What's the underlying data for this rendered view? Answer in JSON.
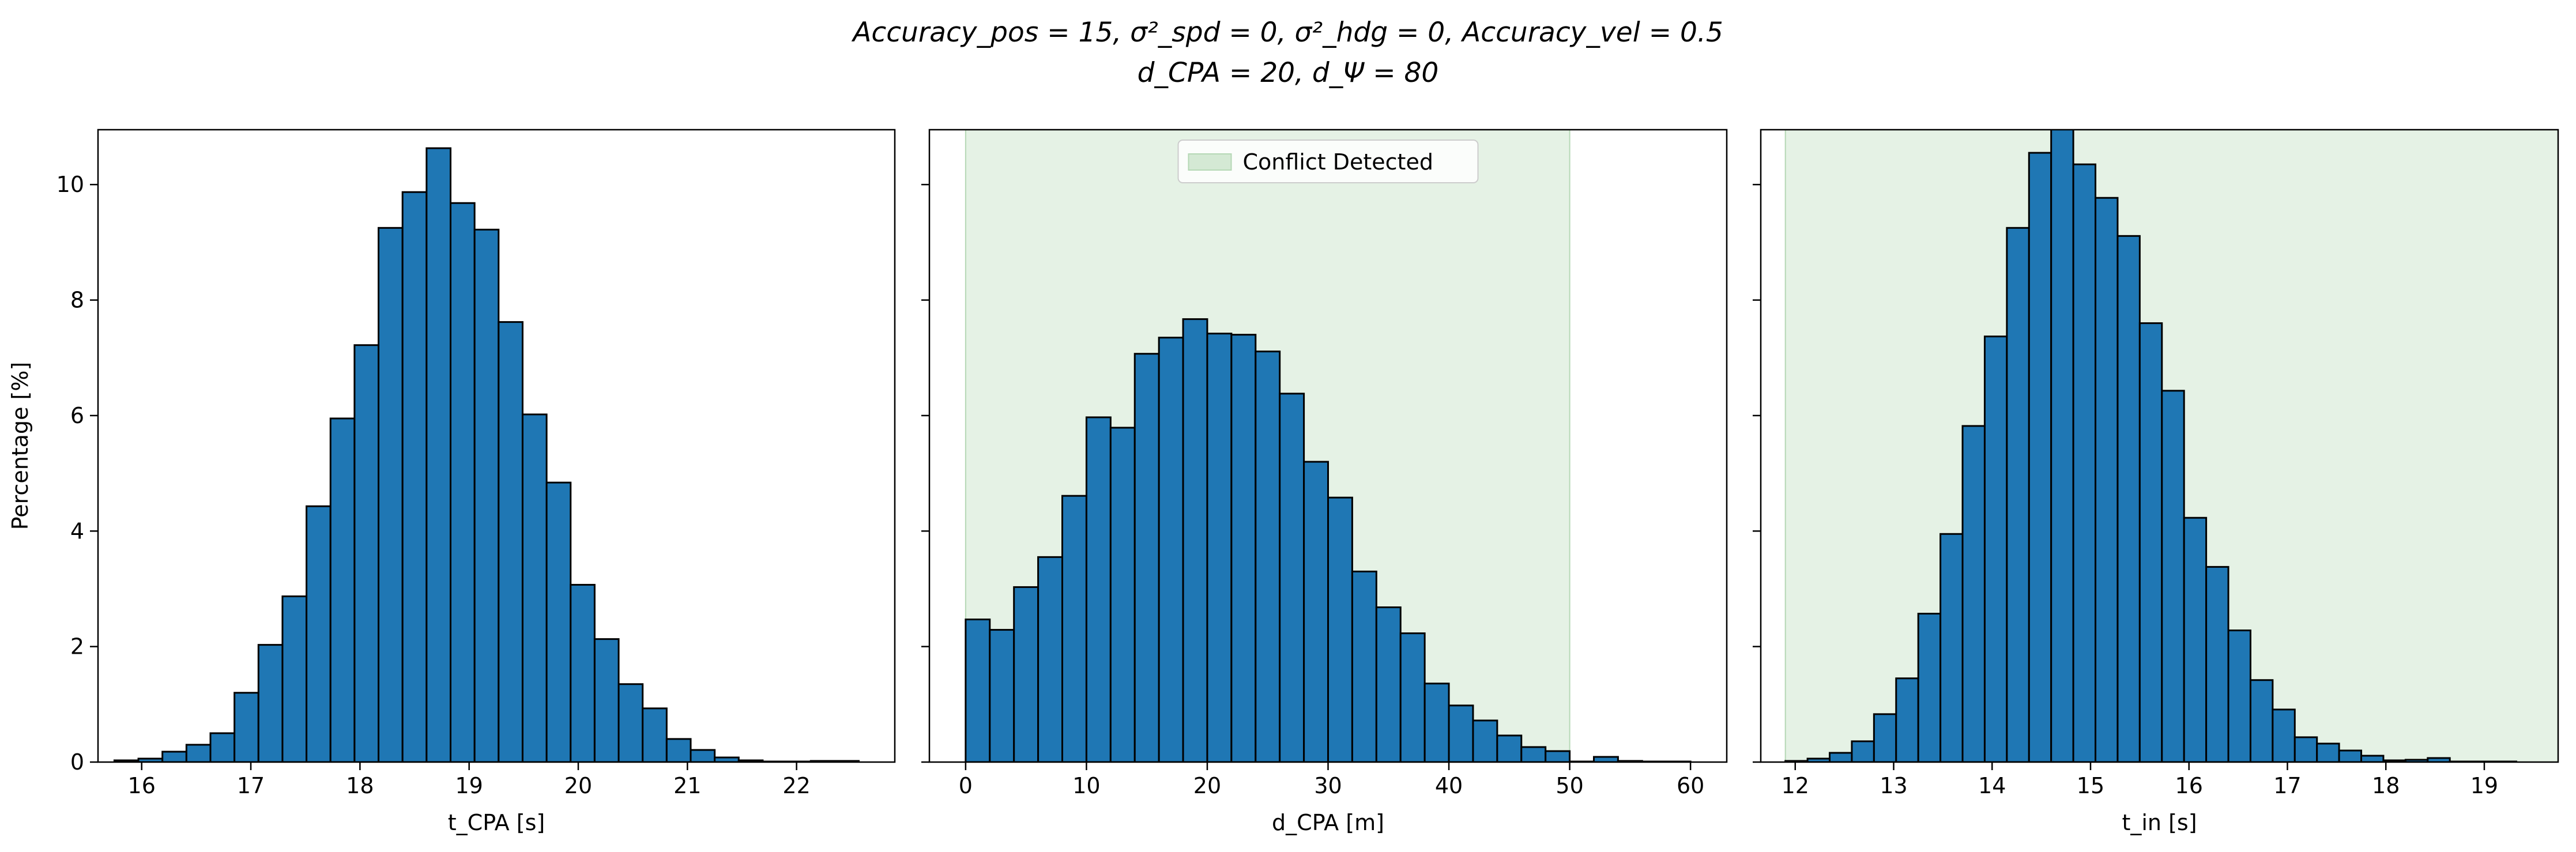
{
  "figure": {
    "title_line1": "Accuracy_pos = 15, σ²_spd = 0, σ²_hdg = 0, Accuracy_vel = 0.5",
    "title_line2": "d_CPA = 20, d_Ψ = 80"
  },
  "chart_data": [
    {
      "type": "bar",
      "title": "",
      "xlabel": "t_CPA [s]",
      "ylabel": "Percentage [%]",
      "xlim": [
        15.6,
        22.9
      ],
      "ylim": [
        0,
        10.95
      ],
      "xticks": [
        16,
        17,
        18,
        19,
        20,
        21,
        22
      ],
      "yticks": [
        0,
        2,
        4,
        6,
        8,
        10
      ],
      "bin_width": 0.22,
      "bins_start": [
        15.75,
        15.97,
        16.19,
        16.41,
        16.63,
        16.85,
        17.07,
        17.29,
        17.51,
        17.73,
        17.95,
        18.17,
        18.39,
        18.61,
        18.83,
        19.05,
        19.27,
        19.49,
        19.71,
        19.93,
        20.15,
        20.37,
        20.59,
        20.81,
        21.03,
        21.25,
        21.47,
        21.69,
        21.91,
        22.13,
        22.35
      ],
      "values": [
        0.03,
        0.06,
        0.18,
        0.3,
        0.5,
        1.2,
        2.03,
        2.87,
        4.43,
        5.95,
        7.22,
        9.25,
        9.87,
        10.63,
        9.68,
        9.22,
        7.62,
        6.02,
        4.84,
        3.07,
        2.13,
        1.35,
        0.93,
        0.4,
        0.21,
        0.08,
        0.03,
        0.01,
        0.01,
        0.02,
        0.02
      ],
      "bar_color": "#1f77b4"
    },
    {
      "type": "bar",
      "title": "",
      "xlabel": "d_CPA [m]",
      "ylabel": "",
      "xlim": [
        -3,
        63
      ],
      "ylim": [
        0,
        10.95
      ],
      "xticks": [
        0,
        10,
        20,
        30,
        40,
        50,
        60
      ],
      "yticks": [
        0,
        2,
        4,
        6,
        8,
        10
      ],
      "bin_width": 2,
      "bins_start": [
        0,
        2,
        4,
        6,
        8,
        10,
        12,
        14,
        16,
        18,
        20,
        22,
        24,
        26,
        28,
        30,
        32,
        34,
        36,
        38,
        40,
        42,
        44,
        46,
        48,
        50,
        52,
        54,
        56,
        58
      ],
      "values": [
        2.47,
        2.29,
        3.03,
        3.55,
        4.61,
        5.97,
        5.79,
        7.07,
        7.35,
        7.67,
        7.42,
        7.4,
        7.11,
        6.38,
        5.2,
        4.58,
        3.3,
        2.68,
        2.23,
        1.36,
        0.98,
        0.72,
        0.46,
        0.26,
        0.19,
        0.01,
        0.09,
        0.02,
        0.01,
        0.01
      ],
      "bar_color": "#1f77b4",
      "shaded_region": {
        "x_from": 0,
        "x_to": 50,
        "color": "#d4e9d4"
      },
      "legend": {
        "entries": [
          "Conflict Detected"
        ],
        "placement": "upper center"
      }
    },
    {
      "type": "bar",
      "title": "",
      "xlabel": "t_in [s]",
      "ylabel": "",
      "xlim": [
        11.65,
        19.75
      ],
      "ylim": [
        0,
        10.95
      ],
      "xticks": [
        12,
        13,
        14,
        15,
        16,
        17,
        18,
        19
      ],
      "yticks": [
        0,
        2,
        4,
        6,
        8,
        10
      ],
      "bin_width": 0.225,
      "bins_start": [
        11.9,
        12.125,
        12.35,
        12.575,
        12.8,
        13.025,
        13.25,
        13.475,
        13.7,
        13.925,
        14.15,
        14.375,
        14.6,
        14.825,
        15.05,
        15.275,
        15.5,
        15.725,
        15.95,
        16.175,
        16.4,
        16.625,
        16.85,
        17.075,
        17.3,
        17.525,
        17.75,
        17.975,
        18.2,
        18.425,
        18.65,
        18.875,
        19.1
      ],
      "values": [
        0.02,
        0.06,
        0.16,
        0.36,
        0.83,
        1.45,
        2.57,
        3.95,
        5.82,
        7.37,
        9.25,
        10.55,
        11.0,
        10.35,
        9.77,
        9.11,
        7.6,
        6.43,
        4.23,
        3.38,
        2.28,
        1.42,
        0.91,
        0.43,
        0.32,
        0.2,
        0.11,
        0.03,
        0.04,
        0.07,
        0.01,
        0.01,
        0.01
      ],
      "bar_color": "#1f77b4",
      "shaded_region": {
        "x_from": 11.9,
        "x_to": 19.75,
        "color": "#d4e9d4"
      }
    }
  ]
}
